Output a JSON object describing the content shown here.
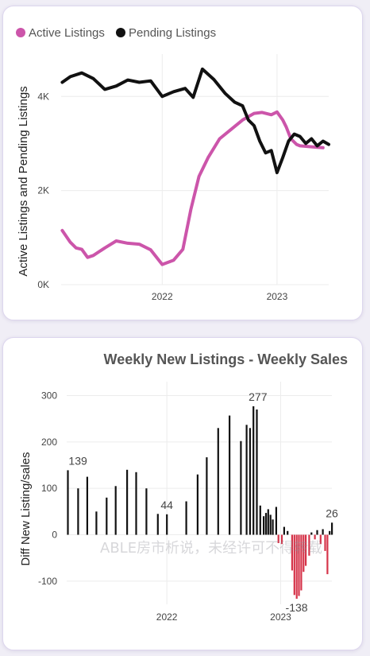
{
  "colors": {
    "active": "#cc55aa",
    "pending": "#111111",
    "positive_bar": "#111111",
    "negative_bar": "#d6344a",
    "grid": "#ececec",
    "axis_text": "#444444",
    "title_text": "#555555"
  },
  "watermark": "ABLE房市析说，未经许可不得转载",
  "chart_data": [
    {
      "type": "line",
      "title": "",
      "xlabel": "",
      "ylabel": "Active Listings and Pending Listings",
      "x_range": [
        2021.12,
        2023.45
      ],
      "ylim": [
        0,
        4900
      ],
      "yticks": [
        0,
        2000,
        4000
      ],
      "ytick_labels": [
        "0K",
        "2K",
        "4K"
      ],
      "xticks": [
        2022,
        2023
      ],
      "xtick_labels": [
        "2022",
        "2023"
      ],
      "grid": true,
      "legend": [
        "Active Listings",
        "Pending Listings"
      ],
      "legend_position": "top-left",
      "series": [
        {
          "name": "Active Listings",
          "x": [
            2021.13,
            2021.2,
            2021.25,
            2021.3,
            2021.35,
            2021.4,
            2021.5,
            2021.6,
            2021.7,
            2021.8,
            2021.9,
            2022.0,
            2022.1,
            2022.18,
            2022.25,
            2022.32,
            2022.4,
            2022.5,
            2022.6,
            2022.7,
            2022.8,
            2022.87,
            2022.95,
            2023.0,
            2023.05,
            2023.08,
            2023.12,
            2023.17,
            2023.2,
            2023.25,
            2023.3,
            2023.35,
            2023.4
          ],
          "y": [
            1150,
            900,
            780,
            750,
            580,
            620,
            780,
            930,
            880,
            860,
            740,
            430,
            520,
            750,
            1600,
            2300,
            2700,
            3100,
            3300,
            3500,
            3640,
            3660,
            3610,
            3670,
            3500,
            3350,
            3100,
            2980,
            2950,
            2940,
            2930,
            2920,
            2910
          ]
        },
        {
          "name": "Pending Listings",
          "x": [
            2021.13,
            2021.2,
            2021.3,
            2021.4,
            2021.5,
            2021.6,
            2021.7,
            2021.8,
            2021.9,
            2022.0,
            2022.1,
            2022.2,
            2022.27,
            2022.35,
            2022.45,
            2022.55,
            2022.63,
            2022.7,
            2022.75,
            2022.8,
            2022.85,
            2022.9,
            2022.95,
            2023.0,
            2023.05,
            2023.1,
            2023.15,
            2023.2,
            2023.25,
            2023.3,
            2023.35,
            2023.4,
            2023.45
          ],
          "y": [
            4300,
            4420,
            4500,
            4380,
            4150,
            4220,
            4350,
            4300,
            4330,
            4000,
            4100,
            4170,
            3980,
            4580,
            4360,
            4060,
            3880,
            3800,
            3500,
            3380,
            3050,
            2800,
            2850,
            2380,
            2700,
            3050,
            3200,
            3150,
            3000,
            3100,
            2950,
            3050,
            2980
          ]
        }
      ]
    },
    {
      "type": "bar",
      "title": "Weekly New Listings - Weekly Sales",
      "xlabel": "",
      "ylabel": "Diff New Listing/sales",
      "x_range": [
        2021.12,
        2023.45
      ],
      "ylim": [
        -150,
        330
      ],
      "yticks": [
        -100,
        0,
        100,
        200,
        300
      ],
      "ytick_labels": [
        "-100",
        "0",
        "100",
        "200",
        "300"
      ],
      "xticks": [
        2022,
        2023
      ],
      "xtick_labels": [
        "2022",
        "2023"
      ],
      "grid": true,
      "data_labels": [
        {
          "x": 2021.13,
          "value": 139,
          "text": "139"
        },
        {
          "x": 2022.0,
          "value": 44,
          "text": "44"
        },
        {
          "x": 2022.8,
          "value": 277,
          "text": "277"
        },
        {
          "x": 2023.14,
          "value": -138,
          "text": "-138"
        },
        {
          "x": 2023.45,
          "value": 26,
          "text": "26"
        }
      ],
      "x": [
        2021.13,
        2021.22,
        2021.3,
        2021.38,
        2021.47,
        2021.55,
        2021.65,
        2021.73,
        2021.82,
        2021.92,
        2022.0,
        2022.17,
        2022.27,
        2022.35,
        2022.45,
        2022.55,
        2022.65,
        2022.7,
        2022.73,
        2022.76,
        2022.79,
        2022.82,
        2022.85,
        2022.87,
        2022.89,
        2022.91,
        2022.93,
        2022.96,
        2022.98,
        2023.01,
        2023.03,
        2023.06,
        2023.1,
        2023.12,
        2023.14,
        2023.16,
        2023.18,
        2023.2,
        2023.22,
        2023.25,
        2023.27,
        2023.3,
        2023.32,
        2023.35,
        2023.37,
        2023.39,
        2023.41,
        2023.43,
        2023.45
      ],
      "values": [
        139,
        100,
        125,
        50,
        80,
        105,
        140,
        135,
        100,
        45,
        44,
        72,
        130,
        167,
        230,
        257,
        202,
        237,
        230,
        277,
        270,
        63,
        40,
        47,
        55,
        43,
        33,
        60,
        -18,
        -20,
        17,
        8,
        -77,
        -130,
        -138,
        -132,
        -120,
        -80,
        -67,
        -45,
        5,
        -10,
        10,
        -20,
        12,
        -35,
        -85,
        8,
        26
      ]
    }
  ]
}
